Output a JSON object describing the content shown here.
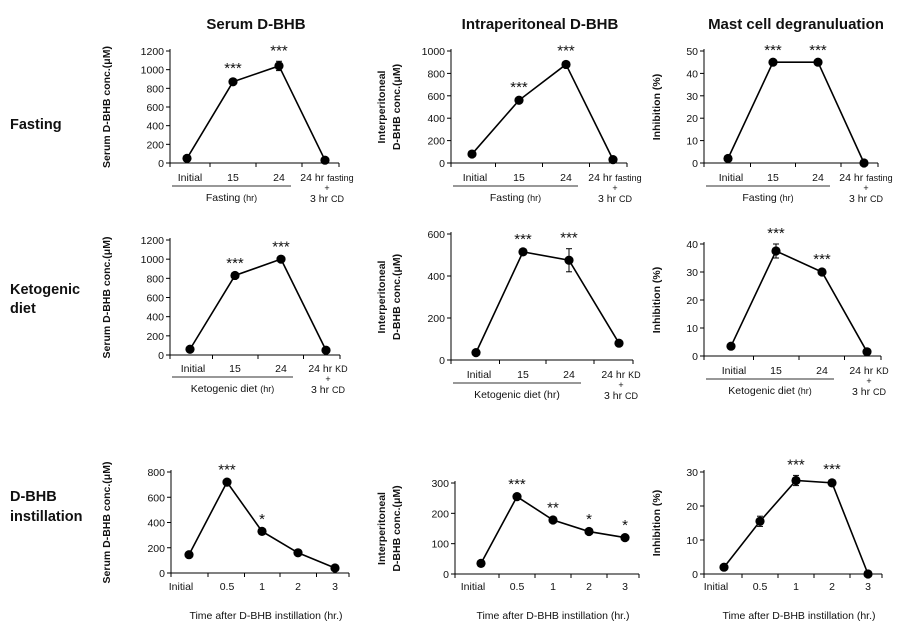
{
  "column_headers": [
    "Serum D-BHB",
    "Intraperitoneal  D-BHB",
    "Mast cell degranuluation"
  ],
  "row_labels": [
    [
      "Fasting"
    ],
    [
      "Ketogenic",
      "diet"
    ],
    [
      "D-BHB",
      "instillation"
    ]
  ],
  "colors": {
    "line": "#000000",
    "marker": "#000000",
    "bracket": "#777777"
  },
  "chart_data": [
    {
      "type": "line",
      "row": "Fasting",
      "column": "Serum D-BHB",
      "ylabel": [
        "Serum D-BHB conc.(μM)"
      ],
      "ylim": [
        0,
        1200
      ],
      "yticks": [
        0,
        200,
        400,
        600,
        800,
        1000,
        1200
      ],
      "categories": [
        "Initial",
        "15",
        "24",
        "24 hr fasting + 3 hr CD"
      ],
      "category_lines": [
        [
          "Initial"
        ],
        [
          "15"
        ],
        [
          "24"
        ],
        [
          "24 hr fasting",
          "+",
          "3 hr CD"
        ]
      ],
      "values": [
        50,
        870,
        1040,
        30
      ],
      "error": [
        0,
        30,
        50,
        5
      ],
      "significance": [
        "",
        "***",
        "***",
        ""
      ],
      "group_label": "Fasting",
      "group_unit": "(hr)",
      "group_span": [
        0,
        2
      ],
      "connect_segments": [
        [
          0,
          2
        ],
        [
          2,
          3
        ]
      ]
    },
    {
      "type": "line",
      "row": "Fasting",
      "column": "Intraperitoneal D-BHB",
      "ylabel": [
        "Interperitoneal",
        "D-BHB conc.(μM)"
      ],
      "ylim": [
        0,
        1000
      ],
      "yticks": [
        0,
        200,
        400,
        600,
        800,
        1000
      ],
      "categories": [
        "Initial",
        "15",
        "24",
        "24 hr fasting + 3 hr CD"
      ],
      "category_lines": [
        [
          "Initial"
        ],
        [
          "15"
        ],
        [
          "24"
        ],
        [
          "24 hr fasting",
          "+",
          "3 hr CD"
        ]
      ],
      "values": [
        80,
        560,
        880,
        30
      ],
      "error": [
        0,
        20,
        25,
        5
      ],
      "significance": [
        "",
        "***",
        "***",
        ""
      ],
      "group_label": "Fasting",
      "group_unit": "(hr)",
      "group_span": [
        0,
        2
      ],
      "connect_segments": [
        [
          0,
          2
        ],
        [
          2,
          3
        ]
      ]
    },
    {
      "type": "line",
      "row": "Fasting",
      "column": "Mast cell degranuluation",
      "ylabel": [
        "Inhibition (%)"
      ],
      "ylim": [
        0,
        50
      ],
      "yticks": [
        0,
        10,
        20,
        30,
        40,
        50
      ],
      "categories": [
        "Initial",
        "15",
        "24",
        "24 hr fasting + 3 hr CD"
      ],
      "category_lines": [
        [
          "Initial"
        ],
        [
          "15"
        ],
        [
          "24"
        ],
        [
          "24 hr fasting",
          "+",
          "3 hr CD"
        ]
      ],
      "values": [
        2,
        45,
        45,
        0
      ],
      "error": [
        0,
        0.5,
        0.5,
        0
      ],
      "significance": [
        "",
        "***",
        "***",
        ""
      ],
      "group_label": "Fasting",
      "group_unit": "(hr)",
      "group_span": [
        0,
        2
      ],
      "connect_segments": [
        [
          0,
          2
        ],
        [
          2,
          3
        ]
      ]
    },
    {
      "type": "line",
      "row": "Ketogenic diet",
      "column": "Serum D-BHB",
      "ylabel": [
        "Serum D-BHB conc.(μM)"
      ],
      "ylim": [
        0,
        1200
      ],
      "yticks": [
        0,
        200,
        400,
        600,
        800,
        1000,
        1200
      ],
      "categories": [
        "Initial",
        "15",
        "24",
        "24 hr KD + 3 hr CD"
      ],
      "category_lines": [
        [
          "Initial"
        ],
        [
          "15"
        ],
        [
          "24"
        ],
        [
          "24 hr KD",
          "+",
          "3 hr CD"
        ]
      ],
      "values": [
        60,
        830,
        1000,
        50
      ],
      "error": [
        0,
        15,
        20,
        5
      ],
      "significance": [
        "",
        "***",
        "***",
        ""
      ],
      "group_label": "Ketogenic diet",
      "group_unit": "(hr)",
      "group_span": [
        0,
        2
      ],
      "connect_segments": [
        [
          0,
          2
        ],
        [
          2,
          3
        ]
      ]
    },
    {
      "type": "line",
      "row": "Ketogenic diet",
      "column": "Intraperitoneal D-BHB",
      "ylabel": [
        "Interperitoneal",
        "D-BHB conc.(μM)"
      ],
      "ylim": [
        0,
        600
      ],
      "yticks": [
        0,
        200,
        400,
        600
      ],
      "categories": [
        "Initial",
        "15",
        "24",
        "24 hr KD + 3 hr CD"
      ],
      "category_lines": [
        [
          "Initial"
        ],
        [
          "15"
        ],
        [
          "24"
        ],
        [
          "24 hr KD",
          "+",
          "3 hr CD"
        ]
      ],
      "values": [
        35,
        515,
        475,
        80
      ],
      "error": [
        0,
        10,
        55,
        5
      ],
      "significance": [
        "",
        "***",
        "***",
        ""
      ],
      "group_label": "Ketogenic diet (hr)",
      "group_unit": "",
      "group_span": [
        0,
        2
      ],
      "connect_segments": [
        [
          0,
          3
        ]
      ]
    },
    {
      "type": "line",
      "row": "Ketogenic diet",
      "column": "Mast cell degranuluation",
      "ylabel": [
        "Inhibition (%)"
      ],
      "ylim": [
        0,
        40
      ],
      "yticks": [
        0,
        10,
        20,
        30,
        40
      ],
      "categories": [
        "Initial",
        "15",
        "24",
        "24 hr KD + 3 hr CD"
      ],
      "category_lines": [
        [
          "Initial"
        ],
        [
          "15"
        ],
        [
          "24"
        ],
        [
          "24 hr KD",
          "+",
          "3 hr CD"
        ]
      ],
      "values": [
        3.5,
        37.5,
        30,
        1.5
      ],
      "error": [
        0,
        2.5,
        0.8,
        0.3
      ],
      "significance": [
        "",
        "***",
        "***",
        ""
      ],
      "group_label": "Ketogenic diet",
      "group_unit": "(hr)",
      "group_span": [
        0,
        2
      ],
      "connect_segments": [
        [
          0,
          3
        ]
      ]
    },
    {
      "type": "line",
      "row": "D-BHB instillation",
      "column": "Serum D-BHB",
      "ylabel": [
        "Serum D-BHB conc.(μM)"
      ],
      "ylim": [
        0,
        800
      ],
      "yticks": [
        0,
        200,
        400,
        600,
        800
      ],
      "categories": [
        "Initial",
        "0.5",
        "1",
        "2",
        "3"
      ],
      "values": [
        145,
        720,
        330,
        160,
        40
      ],
      "error": [
        0,
        12,
        10,
        8,
        5
      ],
      "significance": [
        "",
        "***",
        "*",
        "",
        ""
      ],
      "xlabel": "Time after D-BHB instillation (hr.)",
      "connect_segments": [
        [
          0,
          4
        ]
      ]
    },
    {
      "type": "line",
      "row": "D-BHB instillation",
      "column": "Intraperitoneal D-BHB",
      "ylabel": [
        "Interperitoneal",
        "D-BHB conc.(μM)"
      ],
      "ylim": [
        0,
        300
      ],
      "yticks": [
        0,
        100,
        200,
        300
      ],
      "categories": [
        "Initial",
        "0.5",
        "1",
        "2",
        "3"
      ],
      "values": [
        35,
        255,
        178,
        140,
        120
      ],
      "error": [
        0,
        5,
        5,
        5,
        5
      ],
      "significance": [
        "",
        "***",
        "**",
        "*",
        "*"
      ],
      "xlabel": "Time after D-BHB instillation (hr.)",
      "connect_segments": [
        [
          0,
          4
        ]
      ]
    },
    {
      "type": "line",
      "row": "D-BHB instillation",
      "column": "Mast cell degranuluation",
      "ylabel": [
        "Inhibition (%)"
      ],
      "ylim": [
        0,
        30
      ],
      "yticks": [
        0,
        10,
        20,
        30
      ],
      "categories": [
        "Initial",
        "0.5",
        "1",
        "2",
        "3"
      ],
      "values": [
        2,
        15.5,
        27.5,
        26.8,
        0
      ],
      "error": [
        0,
        1.5,
        1.5,
        0.8,
        0
      ],
      "significance": [
        "",
        "",
        "***",
        "***",
        ""
      ],
      "xlabel": "Time after D-BHB instillation (hr.)",
      "connect_segments": [
        [
          0,
          4
        ]
      ]
    }
  ]
}
